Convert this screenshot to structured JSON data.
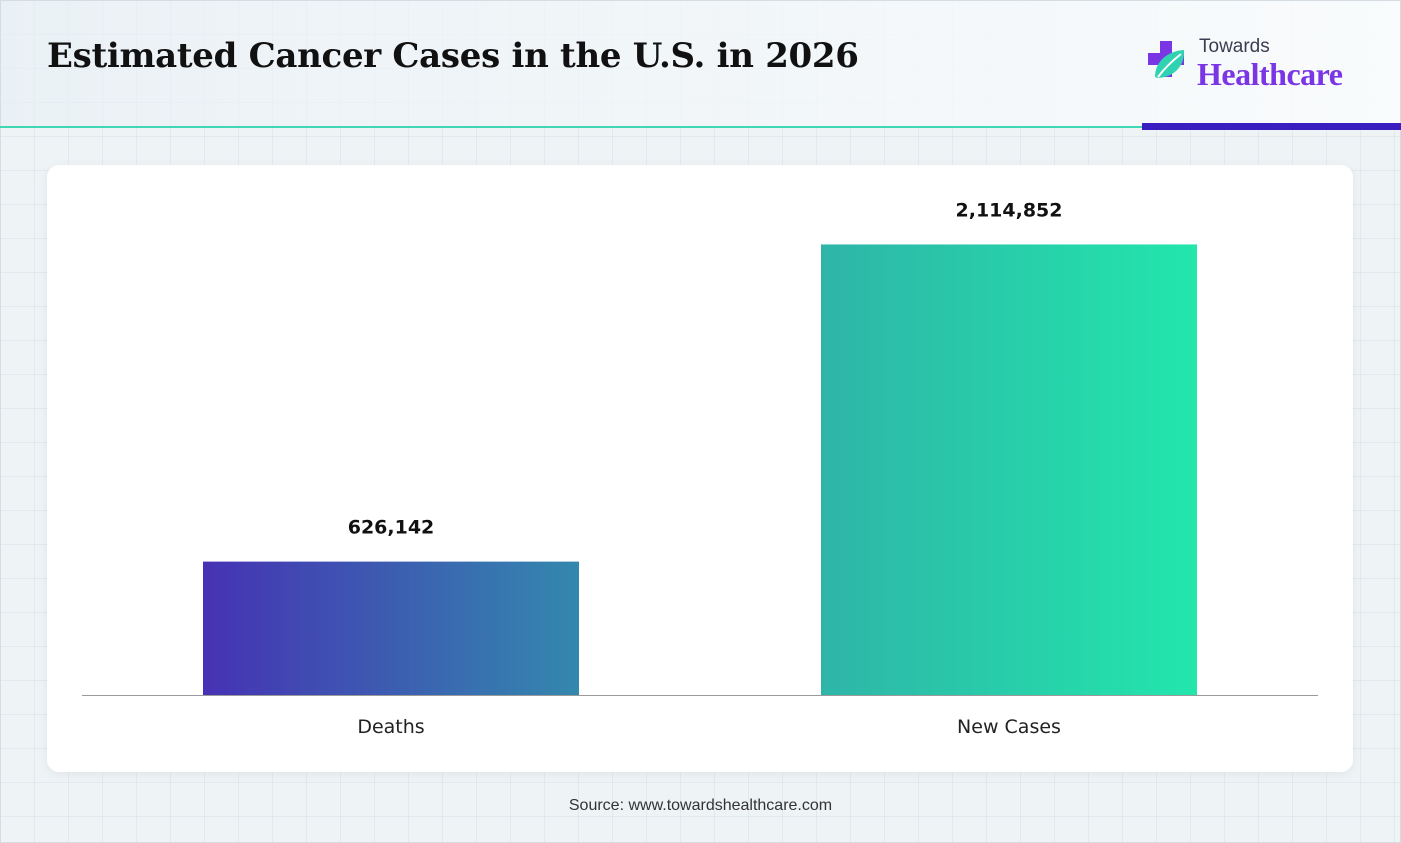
{
  "header": {
    "title": "Estimated Cancer Cases in the U.S. in 2026"
  },
  "logo": {
    "top_text": "Towards",
    "brand_text": "Healthcare",
    "icon": "medical-cross-leaf-icon"
  },
  "footer": {
    "source_text": "Source: www.towardshealthcare.com"
  },
  "colors": {
    "accent_line": "#3fd7b4",
    "accent_bar": "#3a1ec0",
    "brand": "#7a35e4",
    "deaths_gradient": [
      "#4632b4",
      "#3388ae"
    ],
    "new_cases_gradient": [
      "#2eb5a8",
      "#22e6ac"
    ]
  },
  "chart_data": {
    "type": "bar",
    "title": "",
    "xlabel": "",
    "ylabel": "",
    "categories": [
      "Deaths",
      "New Cases"
    ],
    "values": [
      626142,
      2114852
    ],
    "data_labels": [
      "626,142",
      "2,114,852"
    ],
    "ylim": [
      0,
      2300000
    ],
    "grid": false,
    "legend": "none"
  }
}
